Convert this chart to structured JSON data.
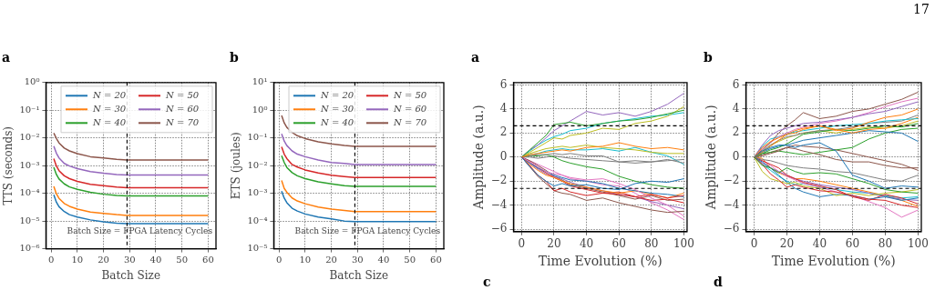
{
  "chart_data": [
    {
      "type": "line",
      "title": "a",
      "xlabel": "Batch Size",
      "ylabel": "TTS (seconds)",
      "log": "y",
      "grid": true,
      "legend": "top right",
      "marker": "none",
      "x": [
        1,
        2,
        3,
        5,
        7,
        10,
        15,
        20,
        25,
        29,
        60
      ],
      "xlim": [
        -2,
        63
      ],
      "xticks": [
        0,
        10,
        20,
        30,
        40,
        50,
        60
      ],
      "ylim": [
        1e-06,
        1
      ],
      "yticks": [
        {
          "value": 1e-06,
          "label": "10⁻⁶"
        },
        {
          "value": 1e-05,
          "label": "10⁻⁵"
        },
        {
          "value": 0.0001,
          "label": "10⁻⁴"
        },
        {
          "value": 0.001,
          "label": "10⁻³"
        },
        {
          "value": 0.01,
          "label": "10⁻²"
        },
        {
          "value": 0.1,
          "label": "10⁻¹"
        },
        {
          "value": 1,
          "label": "10⁰"
        }
      ],
      "ref_lines": [
        {
          "axis": "x",
          "value": 29,
          "label": "Batch Size = FPGA Latency Cycles",
          "line_style": "dashed",
          "color": "#000000"
        }
      ],
      "series": [
        {
          "name": "N = 20",
          "color": "#1f77b4",
          "values": [
            8.8e-05,
            4.8e-05,
            3.3e-05,
            2.2e-05,
            1.7e-05,
            1.4e-05,
            1.1e-05,
            9.3e-06,
            8.4e-06,
            8e-06,
            8e-06
          ]
        },
        {
          "name": "N = 30",
          "color": "#ff7f0e",
          "values": [
            0.00018,
            9.6e-05,
            6.6e-05,
            4.3e-05,
            3.4e-05,
            2.7e-05,
            2.1e-05,
            1.9e-05,
            1.7e-05,
            1.6e-05,
            1.6e-05
          ]
        },
        {
          "name": "N = 40",
          "color": "#2ca02c",
          "values": [
            0.00088,
            0.00048,
            0.00033,
            0.00022,
            0.00017,
            0.00014,
            0.00011,
            9.3e-05,
            8.4e-05,
            8e-05,
            8e-05
          ]
        },
        {
          "name": "N = 50",
          "color": "#d62728",
          "values": [
            0.0018,
            0.00096,
            0.00066,
            0.00043,
            0.00034,
            0.00027,
            0.00021,
            0.00019,
            0.00017,
            0.00016,
            0.00016
          ]
        },
        {
          "name": "N = 60",
          "color": "#9467bd",
          "values": [
            0.0051,
            0.0028,
            0.0019,
            0.0012,
            0.00097,
            0.00078,
            0.00061,
            0.00053,
            0.00048,
            0.00046,
            0.00046
          ]
        },
        {
          "name": "N = 70",
          "color": "#8c564b",
          "values": [
            0.015,
            0.0096,
            0.0066,
            0.0043,
            0.0034,
            0.0027,
            0.0021,
            0.0019,
            0.0017,
            0.0016,
            0.0016
          ]
        }
      ]
    },
    {
      "type": "line",
      "title": "b",
      "xlabel": "Batch Size",
      "ylabel": "ETS (joules)",
      "log": "y",
      "grid": true,
      "legend": "top right",
      "marker": "none",
      "x": [
        1,
        2,
        3,
        5,
        7,
        10,
        15,
        20,
        25,
        29,
        60
      ],
      "xlim": [
        -2,
        63
      ],
      "xticks": [
        0,
        10,
        20,
        30,
        40,
        50,
        60
      ],
      "ylim": [
        1e-05,
        10
      ],
      "yticks": [
        {
          "value": 1e-05,
          "label": "10⁻⁵"
        },
        {
          "value": 0.0001,
          "label": "10⁻⁴"
        },
        {
          "value": 0.001,
          "label": "10⁻³"
        },
        {
          "value": 0.01,
          "label": "10⁻²"
        },
        {
          "value": 0.1,
          "label": "10⁻¹"
        },
        {
          "value": 1,
          "label": "10⁰"
        },
        {
          "value": 10,
          "label": "10¹"
        }
      ],
      "ref_lines": [
        {
          "axis": "x",
          "value": 29,
          "label": "Batch Size = FPGA Latency Cycles",
          "line_style": "dashed",
          "color": "#000000"
        }
      ],
      "series": [
        {
          "name": "N = 20",
          "color": "#1f77b4",
          "values": [
            0.0012,
            0.00067,
            0.00046,
            0.00029,
            0.00023,
            0.00018,
            0.00014,
            0.00012,
            0.0001,
            9.5e-05,
            9.5e-05
          ]
        },
        {
          "name": "N = 30",
          "color": "#ff7f0e",
          "values": [
            0.0029,
            0.0015,
            0.0011,
            0.00068,
            0.00053,
            0.00042,
            0.00032,
            0.00027,
            0.00024,
            0.00022,
            0.00022
          ]
        },
        {
          "name": "N = 40",
          "color": "#2ca02c",
          "values": [
            0.023,
            0.013,
            0.0086,
            0.0056,
            0.0043,
            0.0034,
            0.0026,
            0.0022,
            0.0019,
            0.0018,
            0.0018
          ]
        },
        {
          "name": "N = 50",
          "color": "#d62728",
          "values": [
            0.048,
            0.026,
            0.018,
            0.011,
            0.0089,
            0.007,
            0.0054,
            0.0045,
            0.004,
            0.0037,
            0.0037
          ]
        },
        {
          "name": "N = 60",
          "color": "#9467bd",
          "values": [
            0.14,
            0.077,
            0.053,
            0.034,
            0.026,
            0.021,
            0.016,
            0.013,
            0.012,
            0.011,
            0.011
          ]
        },
        {
          "name": "N = 70",
          "color": "#8c564b",
          "values": [
            0.65,
            0.35,
            0.24,
            0.16,
            0.12,
            0.095,
            0.073,
            0.061,
            0.054,
            0.05,
            0.05
          ]
        }
      ]
    },
    {
      "type": "line",
      "title": "a",
      "xlabel": "Time Evolution (%)",
      "ylabel": "Amplitude (a.u.)",
      "grid": true,
      "marker": "none",
      "annotations": [
        "c"
      ],
      "x": [
        0,
        5,
        10,
        15,
        20,
        25,
        30,
        40,
        50,
        60,
        70,
        80,
        90,
        100
      ],
      "xlim": [
        -5,
        102
      ],
      "xticks": [
        0,
        20,
        40,
        60,
        80,
        100
      ],
      "ylim": [
        -6.2,
        6.2
      ],
      "yticks": [
        {
          "value": -6,
          "label": "−6"
        },
        {
          "value": -4,
          "label": "−4"
        },
        {
          "value": -2,
          "label": "−2"
        },
        0,
        2,
        4,
        6
      ],
      "ref_lines": [
        {
          "axis": "y",
          "value": 2.6,
          "line_style": "dashed",
          "color": "#000000"
        },
        {
          "axis": "y",
          "value": -2.6,
          "line_style": "dashed",
          "color": "#000000"
        }
      ],
      "series": [
        {
          "color": "#1f77b4",
          "values": [
            0,
            -0.8,
            -1.5,
            -2,
            -2.4,
            -2.2,
            -2.4,
            -2.3,
            -2.6,
            -2.7,
            -2.2,
            -2.0,
            -2.1,
            -1.8
          ]
        },
        {
          "color": "#ff7f0e",
          "values": [
            0,
            0.2,
            0.3,
            0.4,
            0.5,
            0.6,
            0.5,
            0.8,
            0.9,
            1.2,
            0.9,
            0.7,
            0.8,
            0.6
          ]
        },
        {
          "color": "#2ca02c",
          "values": [
            0,
            0.6,
            1.2,
            1.8,
            2.7,
            2.8,
            2.9,
            2.6,
            2.8,
            3.0,
            3.1,
            3.3,
            3.6,
            3.9
          ]
        },
        {
          "color": "#d62728",
          "values": [
            0,
            -0.7,
            -1.5,
            -2,
            -2.8,
            -2.6,
            -2.9,
            -3.2,
            -3.0,
            -3.1,
            -3.3,
            -3.1,
            -3.4,
            -3.2
          ]
        },
        {
          "color": "#9467bd",
          "values": [
            0,
            0.6,
            1.0,
            1.6,
            2.2,
            2.6,
            3.0,
            3.8,
            3.5,
            3.7,
            3.4,
            3.8,
            4.4,
            5.3
          ]
        },
        {
          "color": "#8c564b",
          "values": [
            0,
            -0.8,
            -1.6,
            -2.2,
            -2.8,
            -3.0,
            -3.1,
            -3.6,
            -3.4,
            -3.8,
            -4.1,
            -4.4,
            -4.6,
            -4.5
          ]
        },
        {
          "color": "#e377c2",
          "values": [
            0,
            -0.4,
            -0.8,
            -1.2,
            -1.4,
            -1.5,
            -1.7,
            -1.9,
            -1.8,
            -2.2,
            -2.7,
            -3.4,
            -4.0,
            -4.9
          ]
        },
        {
          "color": "#7f7f7f",
          "values": [
            0,
            0.1,
            0.2,
            0.2,
            0.3,
            0.2,
            0.3,
            0.1,
            0.1,
            -0.4,
            -0.3,
            -0.4,
            -0.2,
            -0.5
          ]
        },
        {
          "color": "#bcbd22",
          "values": [
            0,
            0.4,
            0.8,
            1.2,
            1.6,
            1.5,
            1.8,
            2.0,
            2.4,
            2.3,
            2.8,
            3.0,
            3.4,
            4.2
          ]
        },
        {
          "color": "#17becf",
          "values": [
            0,
            0.5,
            1.0,
            1.4,
            1.7,
            1.9,
            2.2,
            2.4,
            2.8,
            3.0,
            3.2,
            3.4,
            3.5,
            3.7
          ]
        },
        {
          "color": "#1f77b4",
          "values": [
            0,
            -0.5,
            -0.9,
            -1.2,
            -1.5,
            -1.7,
            -1.9,
            -2.0,
            -2.2,
            -2.6,
            -2.8,
            -3.0,
            -3.1,
            -3.3
          ]
        },
        {
          "color": "#ff7f0e",
          "values": [
            0,
            -0.6,
            -1.1,
            -1.5,
            -1.7,
            -2.0,
            -2.2,
            -2.5,
            -2.8,
            -3.0,
            -2.8,
            -3.1,
            -3.4,
            -3.0
          ]
        },
        {
          "color": "#2ca02c",
          "values": [
            0,
            0.1,
            0.1,
            0.2,
            0.0,
            -0.3,
            -0.5,
            -0.8,
            -1.0,
            -1.6,
            -2.0,
            -2.3,
            -2.5,
            -2.6
          ]
        },
        {
          "color": "#d62728",
          "values": [
            0,
            -0.4,
            -0.9,
            -1.3,
            -1.7,
            -2.0,
            -2.4,
            -2.7,
            -3.0,
            -2.9,
            -3.3,
            -3.6,
            -3.5,
            -3.8
          ]
        },
        {
          "color": "#9467bd",
          "values": [
            0,
            -0.5,
            -1.0,
            -1.4,
            -1.6,
            -1.8,
            -2.1,
            -2.5,
            -2.8,
            -3.1,
            -3.3,
            -3.7,
            -4.0,
            -4.3
          ]
        },
        {
          "color": "#8c564b",
          "values": [
            0,
            -0.3,
            -0.7,
            -1.1,
            -1.6,
            -1.9,
            -2.3,
            -2.6,
            -2.9,
            -3.2,
            -3.5,
            -3.2,
            -3.6,
            -3.5
          ]
        },
        {
          "color": "#e377c2",
          "values": [
            0,
            -0.3,
            -0.6,
            -0.9,
            -1.2,
            -1.5,
            -1.8,
            -2.0,
            -2.3,
            -2.4,
            -3.0,
            -3.8,
            -4.4,
            -5.2
          ]
        },
        {
          "color": "#7f7f7f",
          "values": [
            0,
            0.0,
            -0.1,
            0.0,
            0.1,
            0.0,
            -0.1,
            -0.2,
            -0.3,
            -0.4,
            -0.5,
            -0.4,
            -0.3,
            -0.2
          ]
        },
        {
          "color": "#bcbd22",
          "values": [
            0,
            0.3,
            0.5,
            0.7,
            0.8,
            0.9,
            0.8,
            1.0,
            0.8,
            0.7,
            0.6,
            0.4,
            0.3,
            0.3
          ]
        },
        {
          "color": "#17becf",
          "values": [
            0,
            0.2,
            0.3,
            0.5,
            0.6,
            0.7,
            0.6,
            0.6,
            0.7,
            0.5,
            0.8,
            0.4,
            0.1,
            -0.6
          ]
        }
      ]
    },
    {
      "type": "line",
      "title": "b",
      "xlabel": "Time Evolution (%)",
      "ylabel": "Amplitude (a.u.)",
      "grid": true,
      "marker": "none",
      "annotations": [
        "d",
        "17"
      ],
      "x": [
        0,
        5,
        10,
        15,
        20,
        25,
        30,
        40,
        50,
        60,
        70,
        80,
        90,
        100
      ],
      "xlim": [
        -5,
        102
      ],
      "xticks": [
        0,
        20,
        40,
        60,
        80,
        100
      ],
      "ylim": [
        -6.2,
        6.2
      ],
      "yticks": [
        {
          "value": -6,
          "label": "−6"
        },
        {
          "value": -4,
          "label": "−4"
        },
        {
          "value": -2,
          "label": "−2"
        },
        0,
        2,
        4,
        6
      ],
      "ref_lines": [
        {
          "axis": "y",
          "value": 2.6,
          "line_style": "dashed",
          "color": "#000000"
        },
        {
          "axis": "y",
          "value": -2.6,
          "line_style": "dashed",
          "color": "#000000"
        }
      ],
      "series": [
        {
          "color": "#1f77b4",
          "values": [
            0,
            0.5,
            0.8,
            1.0,
            1.0,
            0.8,
            1.0,
            1.2,
            0.5,
            -1.5,
            -2.0,
            -2.6,
            -2.4,
            -2.5
          ]
        },
        {
          "color": "#ff7f0e",
          "values": [
            0,
            0.8,
            1.3,
            1.6,
            1.9,
            2.0,
            2.3,
            2.6,
            2.2,
            2.4,
            2.9,
            3.3,
            3.5,
            4.0
          ]
        },
        {
          "color": "#2ca02c",
          "values": [
            0,
            -0.7,
            -0.9,
            -1.3,
            -0.9,
            -1.2,
            -1.4,
            -1.3,
            -1.4,
            -1.8,
            -2.2,
            -2.7,
            -2.9,
            -3.0
          ]
        },
        {
          "color": "#d62728",
          "values": [
            0,
            -0.6,
            -1.4,
            -1.9,
            -2.5,
            -2.3,
            -2.5,
            -2.8,
            -2.9,
            -3.2,
            -3.5,
            -3.6,
            -4.0,
            -4.2
          ]
        },
        {
          "color": "#9467bd",
          "values": [
            0,
            1.0,
            1.8,
            2.2,
            2.4,
            2.6,
            2.8,
            2.9,
            3.1,
            3.3,
            3.6,
            3.8,
            4.2,
            4.6
          ]
        },
        {
          "color": "#8c564b",
          "values": [
            0,
            0.6,
            1.2,
            2.0,
            2.6,
            3.1,
            3.7,
            3.2,
            3.4,
            3.8,
            4.0,
            4.4,
            4.8,
            5.4
          ]
        },
        {
          "color": "#e377c2",
          "values": [
            0,
            0.7,
            1.2,
            1.7,
            2.0,
            2.3,
            2.5,
            2.8,
            3.0,
            3.3,
            3.7,
            4.2,
            4.6,
            4.9
          ]
        },
        {
          "color": "#7f7f7f",
          "values": [
            0,
            -0.2,
            -0.3,
            -0.5,
            -0.7,
            -0.8,
            -0.9,
            -1.0,
            -1.2,
            -1.3,
            -1.6,
            -1.9,
            -2.0,
            -1.5
          ]
        },
        {
          "color": "#bcbd22",
          "values": [
            0,
            -1.2,
            -1.8,
            -2.0,
            -2.2,
            -2.1,
            -2.4,
            -2.6,
            -3.2,
            -3.0,
            -3.2,
            -3.0,
            -2.9,
            -2.7
          ]
        },
        {
          "color": "#17becf",
          "values": [
            0,
            0.9,
            1.5,
            1.7,
            1.9,
            2.1,
            2.2,
            2.4,
            2.6,
            2.7,
            2.8,
            3.0,
            3.1,
            3.2
          ]
        },
        {
          "color": "#1f77b4",
          "values": [
            0,
            -0.4,
            -0.9,
            -1.5,
            -2.1,
            -2.6,
            -2.9,
            -3.3,
            -3.1,
            -3.2,
            -3.5,
            -3.3,
            -3.6,
            -3.4
          ]
        },
        {
          "color": "#ff7f0e",
          "values": [
            0,
            0.4,
            0.9,
            1.4,
            1.9,
            2.2,
            2.4,
            2.6,
            2.3,
            2.0,
            2.3,
            2.4,
            2.8,
            3.3
          ]
        },
        {
          "color": "#2ca02c",
          "values": [
            0,
            0.3,
            0.6,
            0.8,
            1.1,
            1.5,
            1.9,
            2.1,
            2.3,
            2.2,
            2.4,
            2.6,
            2.5,
            2.8
          ]
        },
        {
          "color": "#d62728",
          "values": [
            0,
            -0.3,
            -0.6,
            -0.9,
            -1.5,
            -1.8,
            -2.1,
            -2.4,
            -2.7,
            -3.3,
            -3.6,
            -3.1,
            -3.4,
            -3.9
          ]
        },
        {
          "color": "#9467bd",
          "values": [
            0,
            -0.5,
            -0.9,
            -1.2,
            -1.5,
            -1.8,
            -2.0,
            -2.3,
            -2.5,
            -2.7,
            -3.0,
            -3.3,
            -3.5,
            -3.6
          ]
        },
        {
          "color": "#8c564b",
          "values": [
            0,
            0.1,
            0.3,
            0.5,
            0.8,
            0.7,
            0.5,
            0.2,
            -0.2,
            -0.4,
            -0.4,
            -0.7,
            -0.9,
            -0.9
          ]
        },
        {
          "color": "#e377c2",
          "values": [
            0,
            -0.3,
            -0.7,
            -1.2,
            -1.6,
            -1.9,
            -2.2,
            -2.5,
            -2.9,
            -3.2,
            -3.7,
            -4.2,
            -5.0,
            -4.4
          ]
        },
        {
          "color": "#7f7f7f",
          "values": [
            0,
            0.5,
            1.0,
            1.4,
            1.7,
            1.8,
            2.0,
            2.2,
            2.3,
            2.5,
            2.8,
            2.9,
            3.0,
            3.5
          ]
        },
        {
          "color": "#bcbd22",
          "values": [
            0,
            0.5,
            1.0,
            1.3,
            1.6,
            1.8,
            2.0,
            2.2,
            2.0,
            2.3,
            2.5,
            2.4,
            2.6,
            3.0
          ]
        },
        {
          "color": "#17becf",
          "values": [
            0,
            -0.6,
            -1.1,
            -1.6,
            -2.0,
            -2.3,
            -2.2,
            -2.5,
            -2.7,
            -2.9,
            -3.0,
            -3.2,
            -3.4,
            -3.3
          ]
        },
        {
          "color": "#1f77b4",
          "values": [
            0,
            0.4,
            0.7,
            0.9,
            1.0,
            1.2,
            1.4,
            1.6,
            1.8,
            2.0,
            2.2,
            2.1,
            2.0,
            1.3
          ]
        },
        {
          "color": "#ff7f0e",
          "values": [
            0,
            -0.1,
            -0.9,
            -1.3,
            -1.6,
            -1.8,
            -1.8,
            -2.0,
            -2.3,
            -2.6,
            -2.9,
            -3.2,
            -3.6,
            -4.1
          ]
        },
        {
          "color": "#2ca02c",
          "values": [
            0,
            0.3,
            0.4,
            0.5,
            0.4,
            0.3,
            0.2,
            0.4,
            0.6,
            0.8,
            1.5,
            2.0,
            2.3,
            2.4
          ]
        },
        {
          "color": "#8c564b",
          "values": [
            0,
            0.2,
            0.4,
            0.6,
            0.8,
            1.0,
            0.9,
            0.8,
            0.6,
            0.3,
            0.0,
            -0.3,
            -0.6,
            -1.1
          ]
        }
      ]
    }
  ]
}
